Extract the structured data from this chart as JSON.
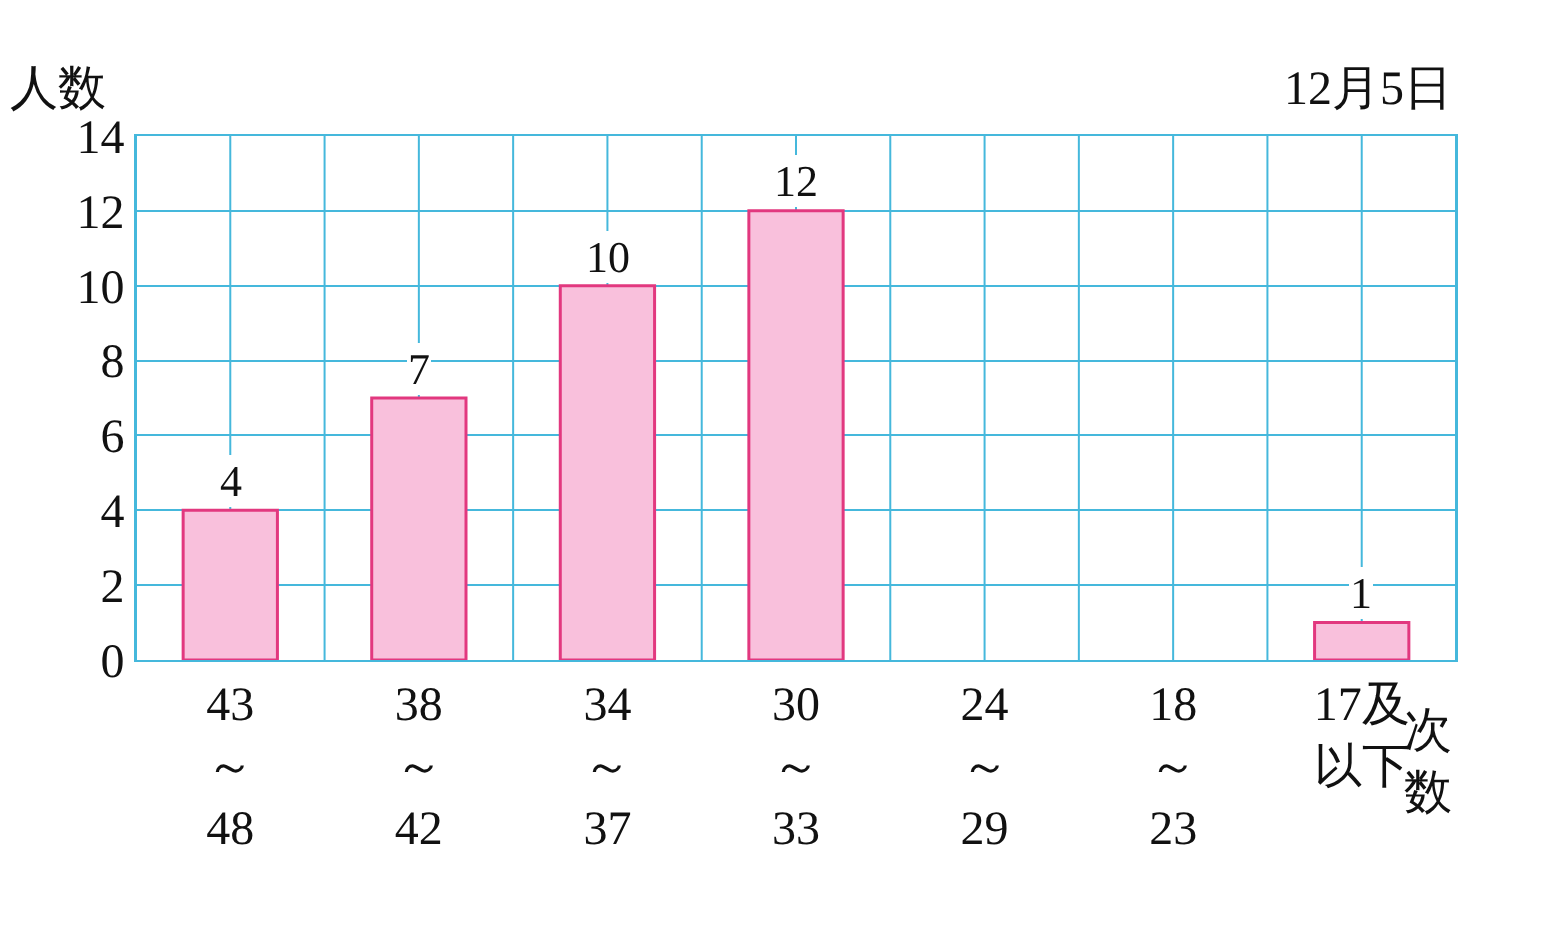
{
  "chart_data": {
    "type": "bar",
    "ylabel": "人数",
    "xlabel": "次数",
    "annotations": [
      "12月5日"
    ],
    "categories": [
      "43\n～\n48",
      "38\n～\n42",
      "34\n～\n37",
      "30\n～\n33",
      "24\n～\n29",
      "18\n～\n23",
      "17及以下"
    ],
    "series": [
      {
        "color": "#f9c0dc",
        "values": [
          4,
          7,
          10,
          12,
          null,
          null,
          1
        ],
        "value_labels": [
          "4",
          "7",
          "10",
          "12",
          null,
          null,
          "1"
        ]
      }
    ],
    "ylim": [
      0,
      14
    ],
    "yticks": [
      0,
      2,
      4,
      6,
      8,
      10,
      12,
      14
    ],
    "grid": true
  }
}
